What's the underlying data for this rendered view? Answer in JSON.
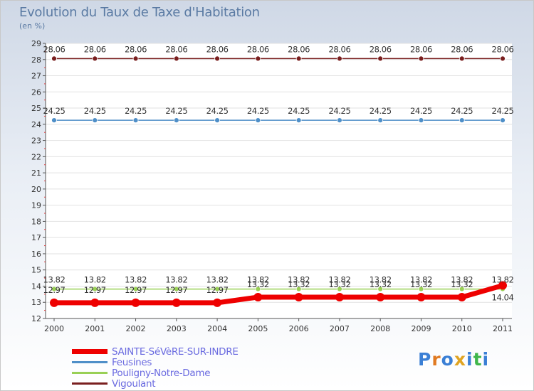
{
  "title": "Evolution du Taux de Taxe d'Habitation",
  "unit": "(en %)",
  "chart_data": {
    "type": "line",
    "title": "Evolution du Taux de Taxe d'Habitation",
    "ylabel": "(en %)",
    "xlabel": "",
    "ylim": [
      12,
      29
    ],
    "yticks": [
      12,
      13,
      14,
      15,
      16,
      17,
      18,
      19,
      20,
      21,
      22,
      23,
      24,
      25,
      26,
      27,
      28,
      29
    ],
    "categories": [
      "2000",
      "2001",
      "2002",
      "2003",
      "2004",
      "2005",
      "2006",
      "2007",
      "2008",
      "2009",
      "2010",
      "2011"
    ],
    "series": [
      {
        "name": "SAINTE-SéVèRE-SUR-INDRE",
        "color": "#ee0000",
        "labels_shown": "partial",
        "values": [
          12.97,
          12.97,
          12.97,
          12.97,
          12.97,
          13.32,
          13.32,
          13.32,
          13.32,
          13.32,
          13.32,
          14.04
        ],
        "point_labels": [
          "12.97",
          "12.97",
          "12.97",
          "12.97",
          "12.97",
          "13.32",
          "13.32",
          "13.32",
          "13.32",
          "13.32",
          "13.32",
          "14.04"
        ]
      },
      {
        "name": "Feusines",
        "color": "#4f8fc8",
        "values": [
          24.25,
          24.25,
          24.25,
          24.25,
          24.25,
          24.25,
          24.25,
          24.25,
          24.25,
          24.25,
          24.25,
          24.25
        ],
        "point_labels": [
          "24.25",
          "24.25",
          "24.25",
          "24.25",
          "24.25",
          "24.25",
          "24.25",
          "24.25",
          "24.25",
          "24.25",
          "24.25",
          "24.25"
        ]
      },
      {
        "name": "Pouligny-Notre-Dame",
        "color": "#99d055",
        "values": [
          13.82,
          13.82,
          13.82,
          13.82,
          13.82,
          13.82,
          13.82,
          13.82,
          13.82,
          13.82,
          13.82,
          13.82
        ],
        "point_labels": [
          "13.82",
          "13.82",
          "13.82",
          "13.82",
          "13.82",
          "13.82",
          "13.82",
          "13.82",
          "13.82",
          "13.82",
          "13.82",
          "13.82"
        ]
      },
      {
        "name": "Vigoulant",
        "color": "#7a1f1f",
        "values": [
          28.06,
          28.06,
          28.06,
          28.06,
          28.06,
          28.06,
          28.06,
          28.06,
          28.06,
          28.06,
          28.06,
          28.06
        ],
        "point_labels": [
          "28.06",
          "28.06",
          "28.06",
          "28.06",
          "28.06",
          "28.06",
          "28.06",
          "28.06",
          "28.06",
          "28.06",
          "28.06",
          "28.06"
        ]
      }
    ],
    "label_text": {
      "sainte": [
        "12.97",
        "12.97",
        "12.97",
        "12.97",
        "12.97",
        "13.32",
        "13.32",
        "13.32",
        "13.32",
        "13.32",
        "13.32",
        "14.04"
      ]
    },
    "legend_position": "bottom-left"
  },
  "legend": [
    {
      "label": "SAINTE-SéVèRE-SUR-INDRE",
      "color": "#ee0000"
    },
    {
      "label": "Feusines",
      "color": "#4f8fc8"
    },
    {
      "label": "Pouligny-Notre-Dame",
      "color": "#99d055"
    },
    {
      "label": "Vigoulant",
      "color": "#7a1f1f"
    }
  ],
  "logo": {
    "letters": [
      "P",
      "r",
      "o",
      "x",
      "i",
      "t",
      "i"
    ],
    "colors": [
      "#3a7fd5",
      "#e07a22",
      "#3a7fd5",
      "#e0a422",
      "#3a7fd5",
      "#3fb64b",
      "#3a7fd5"
    ]
  }
}
